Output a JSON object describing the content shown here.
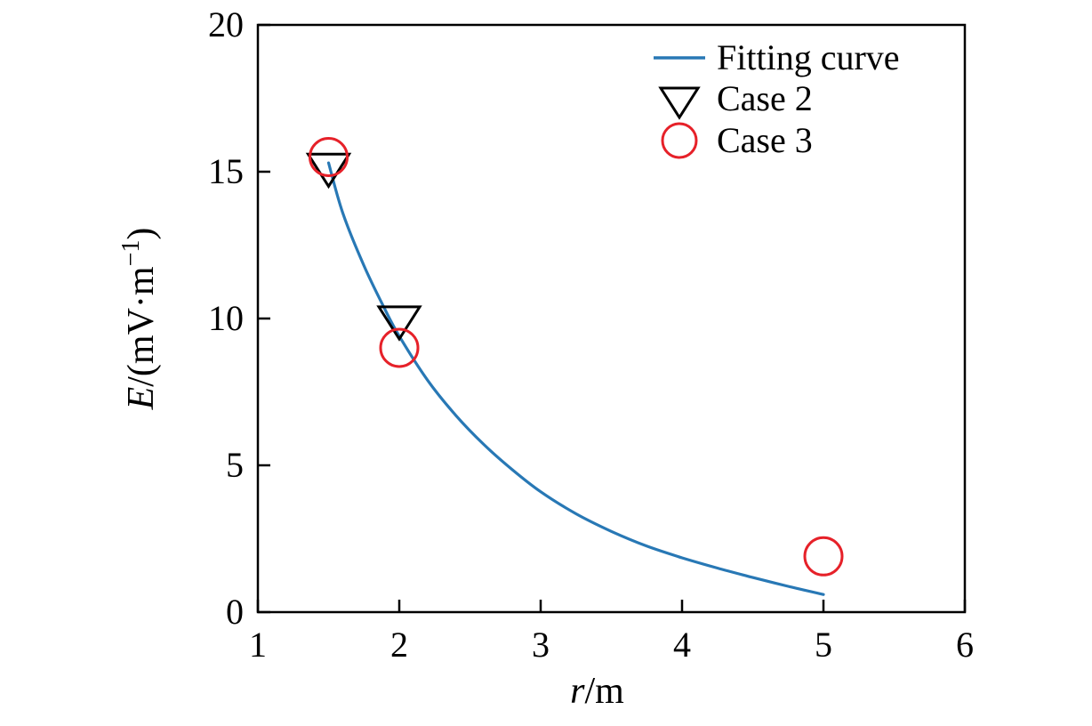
{
  "figure": {
    "background": "#ffffff",
    "axis_color": "#000000",
    "text_color": "#000000"
  },
  "chart_data": {
    "type": "line+scatter",
    "title": "",
    "xlabel": "r/m",
    "ylabel": "E/(mV·m⁻¹)",
    "xlabel_parts": [
      {
        "t": "r",
        "italic": true
      },
      {
        "t": "/m"
      }
    ],
    "ylabel_parts": [
      {
        "t": "E",
        "italic": true
      },
      {
        "t": "/(mV·m"
      },
      {
        "t": "−1",
        "sup": true
      },
      {
        "t": ")"
      }
    ],
    "xlim": [
      1,
      6
    ],
    "ylim": [
      0,
      20
    ],
    "xticks": [
      1,
      2,
      3,
      4,
      5,
      6
    ],
    "yticks": [
      0,
      5,
      10,
      15,
      20
    ],
    "grid": false,
    "legend_position": "top-right-inside",
    "legend": [
      "Fitting curve",
      "Case 2",
      "Case 3"
    ],
    "series": [
      {
        "name": "Fitting curve",
        "kind": "line",
        "color": "#2878b5",
        "points": [
          [
            1.5,
            15.3
          ],
          [
            1.6,
            13.6
          ],
          [
            1.75,
            11.8
          ],
          [
            1.9,
            10.3
          ],
          [
            2.0,
            9.4
          ],
          [
            2.2,
            7.9
          ],
          [
            2.4,
            6.7
          ],
          [
            2.6,
            5.7
          ],
          [
            2.8,
            4.85
          ],
          [
            3.0,
            4.1
          ],
          [
            3.25,
            3.35
          ],
          [
            3.5,
            2.75
          ],
          [
            3.75,
            2.25
          ],
          [
            4.0,
            1.85
          ],
          [
            4.25,
            1.5
          ],
          [
            4.5,
            1.18
          ],
          [
            4.75,
            0.88
          ],
          [
            5.0,
            0.6
          ]
        ]
      },
      {
        "name": "Case 2",
        "kind": "scatter",
        "marker": "triangle-down",
        "color": "#000000",
        "points": [
          [
            1.5,
            15.2
          ],
          [
            2.0,
            10.0
          ]
        ]
      },
      {
        "name": "Case 3",
        "kind": "scatter",
        "marker": "circle",
        "color": "#e62129",
        "points": [
          [
            1.5,
            15.5
          ],
          [
            2.0,
            9.0
          ],
          [
            5.0,
            1.9
          ]
        ]
      }
    ]
  }
}
